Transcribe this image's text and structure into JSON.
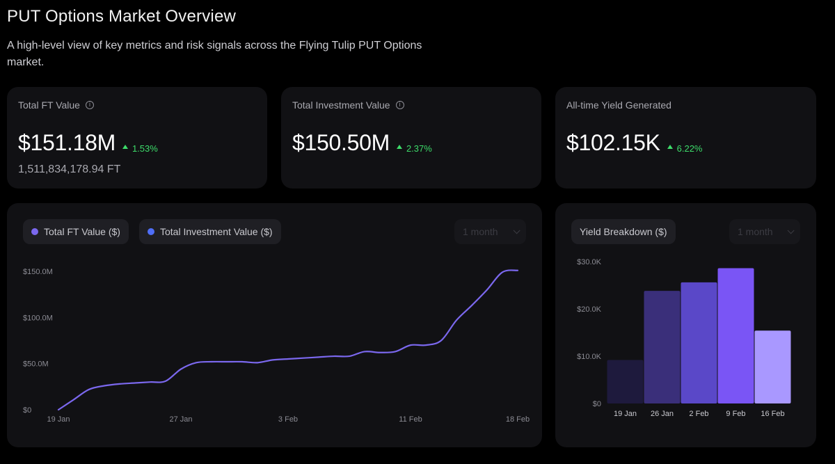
{
  "header": {
    "title": "PUT Options Market Overview",
    "subtitle": "A high-level view of key metrics and risk signals across the Flying Tulip PUT Options market."
  },
  "metrics": [
    {
      "label": "Total FT Value",
      "value": "$151.18M",
      "change": "1.53%",
      "sub": "1,511,834,178.94 FT",
      "icon": "info-icon"
    },
    {
      "label": "Total Investment Value",
      "value": "$150.50M",
      "change": "2.37%",
      "icon": "info-icon"
    },
    {
      "label": "All-time Yield Generated",
      "value": "$102.15K",
      "change": "6.22%"
    }
  ],
  "colors": {
    "up": "#3ddc6a",
    "ftLine": "#7b68ee",
    "investDot": "#4f6ef7"
  },
  "lineCard": {
    "legend": [
      {
        "label": "Total FT Value ($)",
        "color": "#7b68ee"
      },
      {
        "label": "Total Investment Value ($)",
        "color": "#4f6ef7"
      }
    ],
    "range": "1 month"
  },
  "barCard": {
    "legend": "Yield Breakdown ($)",
    "range": "1 month"
  },
  "chart_data": [
    {
      "type": "line",
      "title": "",
      "xlabel": "",
      "ylabel": "",
      "x_ticks": [
        "19 Jan",
        "27 Jan",
        "3 Feb",
        "11 Feb",
        "18 Feb"
      ],
      "y_ticks": [
        "$0",
        "$50.0M",
        "$100.0M",
        "$150.0M"
      ],
      "ylim": [
        0,
        150
      ],
      "series": [
        {
          "name": "Total FT Value ($)",
          "x": [
            "19 Jan",
            "20 Jan",
            "21 Jan",
            "22 Jan",
            "23 Jan",
            "24 Jan",
            "25 Jan",
            "26 Jan",
            "27 Jan",
            "28 Jan",
            "29 Jan",
            "30 Jan",
            "31 Jan",
            "1 Feb",
            "2 Feb",
            "3 Feb",
            "4 Feb",
            "5 Feb",
            "6 Feb",
            "7 Feb",
            "8 Feb",
            "9 Feb",
            "10 Feb",
            "11 Feb",
            "12 Feb",
            "13 Feb",
            "14 Feb",
            "15 Feb",
            "16 Feb",
            "17 Feb",
            "18 Feb"
          ],
          "values": [
            0,
            11,
            22,
            26,
            28,
            29,
            30,
            31,
            44,
            51,
            52,
            52,
            52,
            51,
            54,
            55,
            56,
            57,
            58,
            58,
            63,
            62,
            63,
            70,
            70,
            75,
            97,
            113,
            130,
            149,
            151
          ]
        }
      ]
    },
    {
      "type": "bar",
      "title": "Yield Breakdown ($)",
      "categories": [
        "19 Jan",
        "26 Jan",
        "2 Feb",
        "9 Feb",
        "16 Feb"
      ],
      "values": [
        9200,
        23800,
        25600,
        28600,
        15400
      ],
      "y_ticks": [
        "$0",
        "$10.0K",
        "$20.0K",
        "$30.0K"
      ],
      "ylim": [
        0,
        30000
      ],
      "bar_colors": [
        "#1e1a3d",
        "#3a2f7a",
        "#5a48c8",
        "#7a55f5",
        "#a998ff"
      ]
    }
  ]
}
